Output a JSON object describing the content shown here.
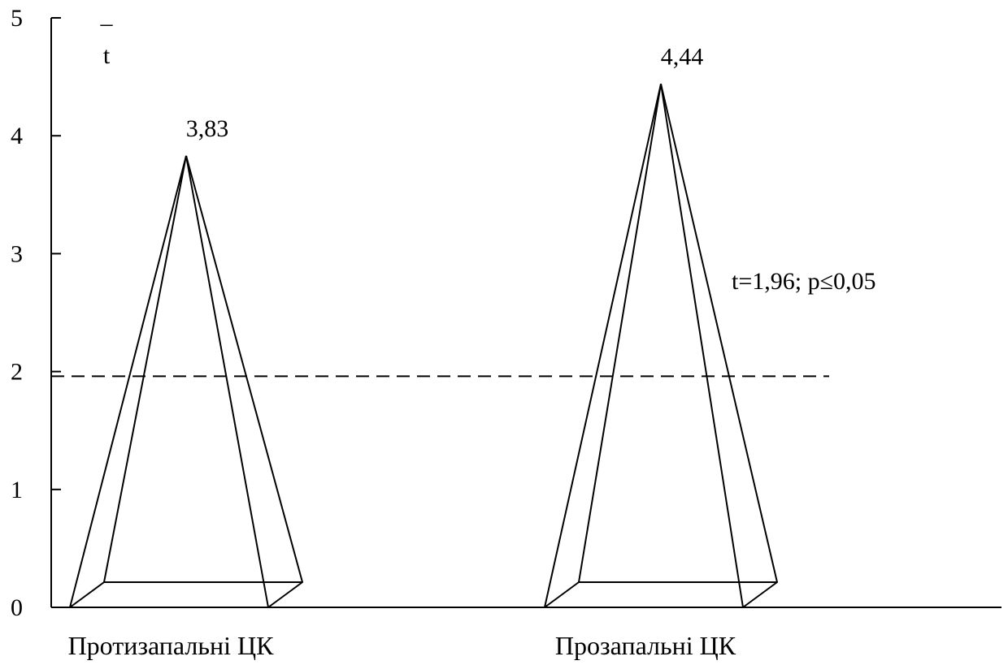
{
  "chart_data": {
    "type": "bar",
    "mark_shape": "pyramid",
    "categories": [
      "Протизапальні ЦК",
      "Прозапальні ЦК"
    ],
    "values": [
      3.83,
      4.44
    ],
    "value_labels": [
      "3,83",
      "4,44"
    ],
    "title": "",
    "xlabel": "",
    "ylabel": "t",
    "ylabel_bar": "–",
    "ylim": [
      0,
      5
    ],
    "yticks": [
      0,
      1,
      2,
      3,
      4,
      5
    ],
    "grid": false,
    "threshold": {
      "value": 1.96,
      "label": "t=1,96; p≤0,05",
      "style": "dashed"
    },
    "colors": {
      "stroke": "#000000",
      "background": "#ffffff"
    }
  }
}
